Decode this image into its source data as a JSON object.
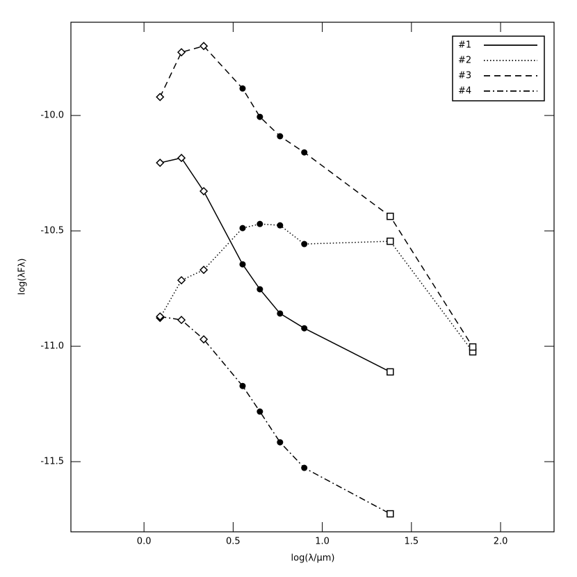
{
  "chart_data": {
    "type": "line",
    "xlabel": "log(λ/μm)",
    "ylabel": "log(λFλ)",
    "x": [
      0.09,
      0.21,
      0.335,
      0.553,
      0.65,
      0.763,
      0.899,
      1.381,
      1.844
    ],
    "markers": [
      "diamond",
      "diamond",
      "diamond",
      "circle",
      "circle",
      "circle",
      "circle",
      "square",
      "square"
    ],
    "series": [
      {
        "name": "#1",
        "color": "#000000",
        "dash": "solid",
        "values": [
          -10.205,
          -10.184,
          -10.328,
          -10.645,
          -10.753,
          -10.858,
          -10.922,
          -11.111,
          null
        ]
      },
      {
        "name": "#2",
        "color": "#000000",
        "dash": "dotted",
        "values": [
          -10.877,
          -10.714,
          -10.669,
          -10.488,
          -10.47,
          -10.476,
          -10.557,
          -10.545,
          -11.024
        ]
      },
      {
        "name": "#3",
        "color": "#000000",
        "dash": "dashed",
        "values": [
          -9.92,
          -9.726,
          -9.699,
          -9.883,
          -10.006,
          -10.09,
          -10.16,
          -10.437,
          -11.003
        ]
      },
      {
        "name": "#4",
        "color": "#000000",
        "dash": "dashdot",
        "values": [
          -10.871,
          -10.886,
          -10.97,
          -11.172,
          -11.283,
          -11.416,
          -11.527,
          -11.726,
          null
        ]
      }
    ],
    "xlim": [
      -0.41,
      2.3
    ],
    "ylim": [
      -11.804,
      -9.596
    ],
    "xticks": [
      {
        "value": 0,
        "label": "0.0"
      },
      0.5,
      {
        "value": 1,
        "label": "1.0"
      },
      1.5,
      {
        "value": 2,
        "label": "2.0"
      }
    ],
    "yticks": [
      {
        "value": -10,
        "label": "-10.0"
      },
      -10.5,
      {
        "value": -11,
        "label": "-11.0"
      },
      -11.5
    ],
    "legend": "upper right"
  }
}
